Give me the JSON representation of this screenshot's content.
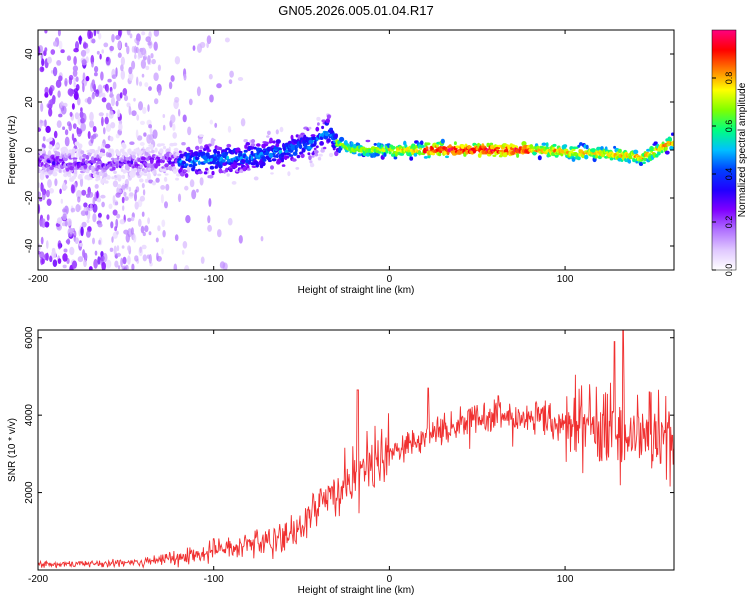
{
  "title": "GN05.2026.005.01.04.R17",
  "chart_data": [
    {
      "type": "heatmap",
      "name": "spectrogram",
      "xlabel": "Height of straight line (km)",
      "ylabel": "Frequency (Hz)",
      "xlim": [
        -200,
        162
      ],
      "ylim": [
        -50,
        50
      ],
      "xticks": [
        -200,
        -100,
        0,
        100
      ],
      "yticks": [
        -40,
        -20,
        0,
        20,
        40
      ],
      "colorbar": {
        "label": "Normalized spectral amplitude",
        "range": [
          0.0,
          1.0
        ],
        "ticks": [
          "0.0",
          "0.2",
          "0.4",
          "0.6",
          "0.8"
        ],
        "colormap": [
          "#ffffff",
          "#e0c8ff",
          "#b070ff",
          "#8000ff",
          "#2000ff",
          "#0040ff",
          "#00c0ff",
          "#00ff80",
          "#80ff00",
          "#ffff00",
          "#ff8000",
          "#ff0000",
          "#ff0080"
        ]
      },
      "ridge": [
        {
          "x": -190,
          "f": -5
        },
        {
          "x": -160,
          "f": -6
        },
        {
          "x": -130,
          "f": -5
        },
        {
          "x": -100,
          "f": -4
        },
        {
          "x": -70,
          "f": -2
        },
        {
          "x": -45,
          "f": 2
        },
        {
          "x": -35,
          "f": 8
        },
        {
          "x": -30,
          "f": 3
        },
        {
          "x": -20,
          "f": 0
        },
        {
          "x": 0,
          "f": 0
        },
        {
          "x": 40,
          "f": 0
        },
        {
          "x": 80,
          "f": 0
        },
        {
          "x": 110,
          "f": -1
        },
        {
          "x": 130,
          "f": -2
        },
        {
          "x": 145,
          "f": -3
        },
        {
          "x": 160,
          "f": 3
        }
      ]
    },
    {
      "type": "line",
      "name": "snr",
      "xlabel": "Height of straight line (km)",
      "ylabel": "SNR (10 * v/v)",
      "xlim": [
        -200,
        162
      ],
      "ylim": [
        0,
        6200
      ],
      "xticks": [
        -200,
        -100,
        0,
        100
      ],
      "yticks": [
        2000,
        4000,
        6000
      ],
      "color": "#f03030",
      "trend": [
        {
          "x": -200,
          "y": 150
        },
        {
          "x": -150,
          "y": 180
        },
        {
          "x": -120,
          "y": 300
        },
        {
          "x": -100,
          "y": 500
        },
        {
          "x": -80,
          "y": 650
        },
        {
          "x": -60,
          "y": 800
        },
        {
          "x": -50,
          "y": 1100
        },
        {
          "x": -40,
          "y": 1700
        },
        {
          "x": -30,
          "y": 2000
        },
        {
          "x": -20,
          "y": 2400
        },
        {
          "x": -10,
          "y": 2800
        },
        {
          "x": 0,
          "y": 3100
        },
        {
          "x": 10,
          "y": 3300
        },
        {
          "x": 20,
          "y": 3500
        },
        {
          "x": 30,
          "y": 3650
        },
        {
          "x": 40,
          "y": 3800
        },
        {
          "x": 60,
          "y": 3950
        },
        {
          "x": 80,
          "y": 3900
        },
        {
          "x": 100,
          "y": 3800
        },
        {
          "x": 120,
          "y": 3700
        },
        {
          "x": 140,
          "y": 3400
        },
        {
          "x": 162,
          "y": 3300
        }
      ],
      "spikes": [
        {
          "x": -18,
          "y": 4650
        },
        {
          "x": 22,
          "y": 4700
        },
        {
          "x": 62,
          "y": 4500
        },
        {
          "x": 128,
          "y": 5900
        },
        {
          "x": 133,
          "y": 6200
        },
        {
          "x": 148,
          "y": 4600
        }
      ]
    }
  ]
}
